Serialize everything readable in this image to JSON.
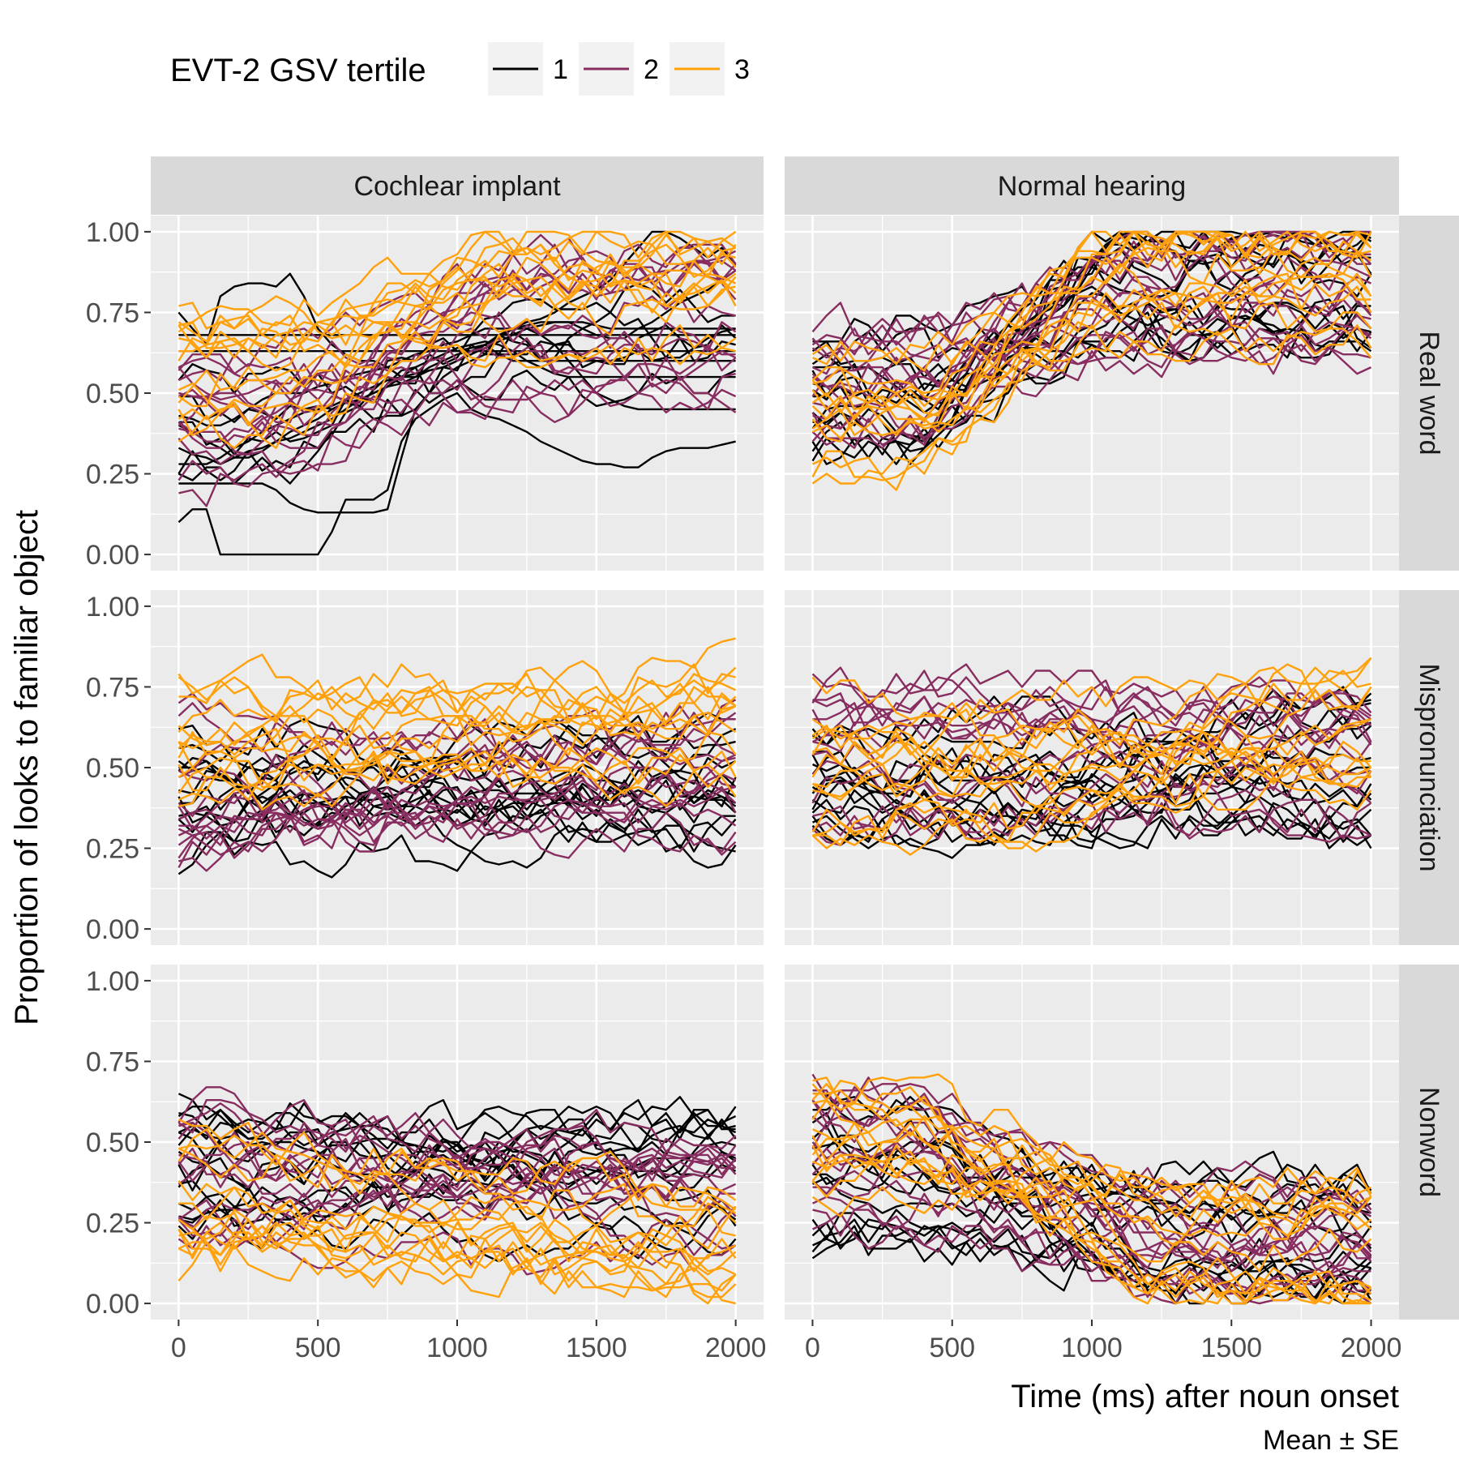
{
  "chart_data": {
    "type": "line",
    "legend": {
      "title": "EVT-2 GSV tertile",
      "position": "top-left",
      "entries": [
        {
          "label": "1",
          "color": "#000000"
        },
        {
          "label": "2",
          "color": "#882d60"
        },
        {
          "label": "3",
          "color": "#ffa10a"
        }
      ]
    },
    "xlabel": "Time (ms) after noun onset",
    "ylabel": "Proportion of looks to familiar object",
    "caption": "Mean ± SE",
    "xlim": [
      -100,
      2100
    ],
    "ylim": [
      -0.05,
      1.05
    ],
    "x_ticks": [
      0,
      500,
      1000,
      1500,
      2000
    ],
    "x_tick_labels": [
      "0",
      "500",
      "1000",
      "1500",
      "2000"
    ],
    "y_ticks": [
      0,
      0.25,
      0.5,
      0.75,
      1
    ],
    "y_tick_labels": [
      "0.00",
      "0.25",
      "0.50",
      "0.75",
      "1.00"
    ],
    "grid": true,
    "facet_columns": [
      "Cochlear implant",
      "Normal hearing"
    ],
    "facet_rows": [
      "Real word",
      "Mispronunciation",
      "Nonword"
    ],
    "x": [
      0,
      50,
      100,
      150,
      200,
      250,
      300,
      350,
      400,
      450,
      500,
      550,
      600,
      650,
      700,
      750,
      800,
      850,
      900,
      950,
      1000,
      1050,
      1100,
      1150,
      1200,
      1250,
      1300,
      1350,
      1400,
      1450,
      1500,
      1550,
      1600,
      1650,
      1700,
      1750,
      1800,
      1850,
      1900,
      1950,
      2000
    ],
    "panels": [
      {
        "col": "Cochlear implant",
        "row": "Real word",
        "series": [
          {
            "tertile": 1,
            "values": [
              0.1,
              0.14,
              0.14,
              0,
              0,
              0,
              0,
              0,
              0,
              0,
              0,
              0.07,
              0.17,
              0.17,
              0.17,
              0.2,
              0.35,
              0.42,
              0.45,
              0.48,
              0.5,
              0.45,
              0.43,
              0.42,
              0.4,
              0.38,
              0.35,
              0.33,
              0.31,
              0.29,
              0.28,
              0.28,
              0.27,
              0.27,
              0.3,
              0.32,
              0.33,
              0.33,
              0.33,
              0.34,
              0.35
            ]
          },
          {
            "tertile": 1,
            "values": [
              0.22,
              0.22,
              0.22,
              0.22,
              0.22,
              0.22,
              0.22,
              0.2,
              0.16,
              0.14,
              0.13,
              0.13,
              0.13,
              0.13,
              0.13,
              0.14,
              0.3,
              0.45,
              0.5,
              0.55,
              0.58,
              0.6,
              0.62,
              0.62,
              0.6,
              0.6,
              0.6,
              0.6,
              0.6,
              0.6,
              0.6,
              0.6,
              0.6,
              0.6,
              0.6,
              0.6,
              0.6,
              0.6,
              0.6,
              0.6,
              0.6
            ]
          },
          {
            "tertile": 1,
            "values": [
              0.75,
              0.7,
              0.65,
              0.8,
              0.83,
              0.84,
              0.84,
              0.83,
              0.87,
              0.8,
              0.7,
              0.65,
              0.62,
              0.6,
              0.6,
              0.58,
              0.55,
              0.55,
              0.58,
              0.6,
              0.62,
              0.63,
              0.65,
              0.68,
              0.7,
              0.71,
              0.72,
              0.72,
              0.72,
              0.7,
              0.68,
              0.67,
              0.67,
              0.7,
              0.72,
              0.75,
              0.78,
              0.8,
              0.82,
              0.85,
              0.88
            ]
          },
          {
            "tertile": 1,
            "values": [
              0.63,
              0.63,
              0.63,
              0.63,
              0.63,
              0.63,
              0.63,
              0.63,
              0.63,
              0.63,
              0.63,
              0.63,
              0.63,
              0.63,
              0.63,
              0.63,
              0.63,
              0.63,
              0.63,
              0.63,
              0.63,
              0.63,
              0.63,
              0.63,
              0.63,
              0.63,
              0.63,
              0.63,
              0.63,
              0.63,
              0.63,
              0.63,
              0.63,
              0.63,
              0.63,
              0.63,
              0.63,
              0.63,
              0.63,
              0.63,
              0.63
            ]
          },
          {
            "tertile": 1,
            "values": [
              0.68,
              0.68,
              0.68,
              0.68,
              0.68,
              0.68,
              0.68,
              0.68,
              0.68,
              0.68,
              0.68,
              0.68,
              0.68,
              0.68,
              0.68,
              0.68,
              0.68,
              0.68,
              0.68,
              0.68,
              0.68,
              0.68,
              0.68,
              0.68,
              0.68,
              0.68,
              0.68,
              0.68,
              0.68,
              0.68,
              0.68,
              0.68,
              0.68,
              0.68,
              0.68,
              0.68,
              0.68,
              0.68,
              0.68,
              0.68,
              0.68
            ]
          },
          {
            "tertile": 1,
            "values": [
              0.43,
              0.42,
              0.4,
              0.4,
              0.42,
              0.45,
              0.48,
              0.5,
              0.5,
              0.5,
              0.52,
              0.53,
              0.55,
              0.56,
              0.57,
              0.58,
              0.6,
              0.62,
              0.63,
              0.65,
              0.66,
              0.68,
              0.7,
              0.7,
              0.7,
              0.72,
              0.73,
              0.75,
              0.78,
              0.8,
              0.82,
              0.85,
              0.9,
              0.95,
              1,
              1,
              0.98,
              0.95,
              0.92,
              0.95,
              0.9
            ]
          },
          {
            "tertile": 1,
            "values": [
              0.33,
              0.31,
              0.3,
              0.28,
              0.3,
              0.32,
              0.33,
              0.35,
              0.36,
              0.38,
              0.4,
              0.42,
              0.45,
              0.48,
              0.5,
              0.52,
              0.55,
              0.58,
              0.6,
              0.62,
              0.64,
              0.65,
              0.66,
              0.65,
              0.63,
              0.6,
              0.58,
              0.56,
              0.55,
              0.55,
              0.55,
              0.55,
              0.55,
              0.55,
              0.55,
              0.55,
              0.55,
              0.55,
              0.55,
              0.55,
              0.55
            ]
          },
          {
            "tertile": 1,
            "values": [
              0.28,
              0.28,
              0.28,
              0.3,
              0.33,
              0.35,
              0.38,
              0.4,
              0.42,
              0.44,
              0.45,
              0.46,
              0.48,
              0.5,
              0.52,
              0.54,
              0.55,
              0.56,
              0.57,
              0.58,
              0.6,
              0.62,
              0.65,
              0.67,
              0.7,
              0.7,
              0.68,
              0.65,
              0.6,
              0.55,
              0.5,
              0.48,
              0.46,
              0.45,
              0.45,
              0.45,
              0.45,
              0.45,
              0.45,
              0.45,
              0.45
            ]
          },
          {
            "tertile": 1,
            "values": [
              0.4,
              0.38,
              0.35,
              0.33,
              0.3,
              0.3,
              0.32,
              0.35,
              0.38,
              0.4,
              0.42,
              0.45,
              0.47,
              0.48,
              0.5,
              0.52,
              0.53,
              0.55,
              0.57,
              0.58,
              0.6,
              0.62,
              0.64,
              0.66,
              0.68,
              0.7,
              0.71,
              0.72,
              0.72,
              0.72,
              0.71,
              0.7,
              0.7,
              0.7,
              0.7,
              0.7,
              0.7,
              0.7,
              0.7,
              0.7,
              0.7
            ]
          }
        ]
      }
    ]
  }
}
